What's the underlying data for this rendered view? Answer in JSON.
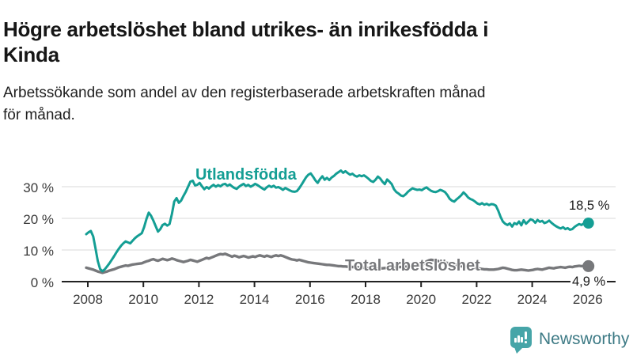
{
  "header": {
    "title": "Högre arbetslöshet bland utrikes- än inrikesfödda i Kinda",
    "title_lines": [
      "Högre arbetslöshet bland utrikes- än inrikesfödda i",
      "Kinda"
    ],
    "subtitle": "Arbetssökande som andel av den registerbaserade arbetskraften månad för månad.",
    "subtitle_lines": [
      "Arbetssökande som andel av den registerbaserade arbetskraften månad",
      "för månad."
    ]
  },
  "footer": {
    "brand": "Newsworthy",
    "brand_icon": "bar-chart-speech-bubble-icon",
    "brand_color": "#46a5a8",
    "brand_text_color": "#3d7a85"
  },
  "chart_data": {
    "type": "line",
    "x_unit": "month",
    "x_start": "2008-01",
    "x_end": "2026-02",
    "xticks": [
      2008,
      2010,
      2012,
      2014,
      2016,
      2018,
      2020,
      2022,
      2024,
      2026
    ],
    "xtick_labels": [
      "2008",
      "2010",
      "2012",
      "2014",
      "2016",
      "2018",
      "2020",
      "2022",
      "2024",
      "2026"
    ],
    "yticks": [
      0,
      10,
      20,
      30
    ],
    "ytick_labels": [
      "0 %",
      "10 %",
      "20 %",
      "30 %"
    ],
    "ylim": [
      0,
      36
    ],
    "grid": "horizontal",
    "legend_position": "inline-labels",
    "series": [
      {
        "name": "Utlandsfödda",
        "color": "#149e94",
        "end_label": "18,5 %",
        "end_value": 18.5,
        "values": [
          15.0,
          15.6,
          16.0,
          14.3,
          10.5,
          6.5,
          4.0,
          3.3,
          3.9,
          4.8,
          5.8,
          6.9,
          8.0,
          9.2,
          10.3,
          11.3,
          12.1,
          12.7,
          12.4,
          12.1,
          12.9,
          13.7,
          14.3,
          14.8,
          15.3,
          17.2,
          19.8,
          21.8,
          20.8,
          19.3,
          17.5,
          15.8,
          16.6,
          17.9,
          18.3,
          17.7,
          18.2,
          21.3,
          25.3,
          26.4,
          24.9,
          25.6,
          27.1,
          28.4,
          30.0,
          31.6,
          31.9,
          30.4,
          30.6,
          31.2,
          30.1,
          29.2,
          29.9,
          29.4,
          30.1,
          30.6,
          30.0,
          30.5,
          30.1,
          30.7,
          30.9,
          30.3,
          30.7,
          30.1,
          29.6,
          29.3,
          30.0,
          30.5,
          30.9,
          30.2,
          30.6,
          30.0,
          30.4,
          30.9,
          30.5,
          30.0,
          29.5,
          29.1,
          29.8,
          30.3,
          29.9,
          30.3,
          29.7,
          29.9,
          29.5,
          29.0,
          29.6,
          29.2,
          28.8,
          28.5,
          28.4,
          28.6,
          29.5,
          30.6,
          31.8,
          33.0,
          33.8,
          34.2,
          33.2,
          32.0,
          31.2,
          32.4,
          33.3,
          32.2,
          32.8,
          32.1,
          32.9,
          33.4,
          34.1,
          34.6,
          35.1,
          34.4,
          34.9,
          34.3,
          33.8,
          34.1,
          33.5,
          33.2,
          33.6,
          33.3,
          33.6,
          33.1,
          32.5,
          31.8,
          31.5,
          32.2,
          33.2,
          32.6,
          31.6,
          30.8,
          32.3,
          31.6,
          30.8,
          29.2,
          28.3,
          27.8,
          27.2,
          27.0,
          27.6,
          28.4,
          29.0,
          29.5,
          29.2,
          29.0,
          29.1,
          28.9,
          29.4,
          29.8,
          29.2,
          28.7,
          28.4,
          28.3,
          28.6,
          29.0,
          28.7,
          28.3,
          27.4,
          26.2,
          25.6,
          25.3,
          26.0,
          26.6,
          27.3,
          28.2,
          27.5,
          26.6,
          26.1,
          25.8,
          25.3,
          24.7,
          24.4,
          24.8,
          24.3,
          24.6,
          24.2,
          24.5,
          24.4,
          24.0,
          22.4,
          20.5,
          19.0,
          18.3,
          17.9,
          18.4,
          17.4,
          18.5,
          18.1,
          19.0,
          17.8,
          19.4,
          18.3,
          19.0,
          19.7,
          19.4,
          18.6,
          19.5,
          18.9,
          19.2,
          18.5,
          18.8,
          19.3,
          18.6,
          18.0,
          17.5,
          17.1,
          16.8,
          17.2,
          16.6,
          16.9,
          16.4,
          16.6,
          17.3,
          17.8,
          18.2,
          17.9,
          18.4,
          18.2,
          18.5
        ]
      },
      {
        "name": "Total arbetslöshet",
        "color": "#77787b",
        "end_label": "4,9 %",
        "end_value": 4.9,
        "values": [
          4.4,
          4.2,
          4.0,
          3.8,
          3.5,
          3.2,
          3.0,
          2.8,
          3.0,
          3.2,
          3.5,
          3.7,
          3.9,
          4.2,
          4.5,
          4.7,
          4.9,
          5.1,
          5.0,
          5.2,
          5.4,
          5.5,
          5.6,
          5.7,
          5.8,
          6.1,
          6.4,
          6.6,
          6.9,
          7.1,
          6.8,
          6.6,
          6.9,
          7.2,
          7.0,
          6.8,
          7.0,
          7.3,
          7.1,
          6.8,
          6.6,
          6.4,
          6.2,
          6.4,
          6.6,
          6.9,
          6.7,
          6.5,
          6.3,
          6.6,
          6.9,
          7.2,
          7.5,
          7.3,
          7.6,
          7.9,
          8.2,
          8.5,
          8.7,
          8.6,
          8.8,
          8.5,
          8.2,
          7.9,
          8.2,
          8.0,
          7.7,
          7.9,
          8.1,
          7.9,
          7.6,
          7.8,
          8.0,
          7.8,
          8.1,
          8.3,
          8.1,
          7.9,
          8.2,
          8.0,
          7.8,
          8.1,
          8.3,
          8.1,
          8.3,
          8.1,
          7.8,
          7.5,
          7.2,
          7.0,
          6.9,
          6.7,
          6.9,
          6.7,
          6.5,
          6.3,
          6.1,
          6.0,
          5.9,
          5.8,
          5.7,
          5.6,
          5.5,
          5.4,
          5.3,
          5.3,
          5.2,
          5.1,
          5.0,
          4.9,
          4.9,
          4.8,
          4.8,
          4.7,
          4.7,
          4.6,
          4.6,
          4.5,
          4.5,
          4.4,
          4.4,
          4.3,
          4.3,
          4.2,
          4.2,
          4.1,
          4.1,
          4.2,
          4.2,
          4.3,
          4.3,
          4.4,
          4.4,
          4.5,
          4.5,
          4.6,
          4.6,
          4.7,
          4.7,
          4.8,
          4.8,
          4.9,
          4.9,
          5.0,
          5.1,
          5.2,
          5.8,
          6.4,
          6.7,
          6.9,
          6.8,
          6.7,
          6.5,
          6.3,
          6.1,
          6.0,
          5.9,
          5.8,
          5.6,
          5.4,
          5.2,
          5.0,
          4.9,
          4.8,
          4.7,
          4.6,
          4.5,
          4.4,
          4.3,
          4.2,
          4.1,
          4.0,
          3.9,
          3.9,
          3.8,
          3.8,
          3.8,
          3.9,
          4.0,
          4.2,
          4.4,
          4.3,
          4.1,
          3.9,
          3.7,
          3.6,
          3.6,
          3.7,
          3.8,
          3.7,
          3.6,
          3.5,
          3.6,
          3.7,
          3.9,
          4.0,
          3.9,
          3.8,
          4.0,
          4.2,
          4.4,
          4.3,
          4.2,
          4.4,
          4.5,
          4.6,
          4.5,
          4.4,
          4.6,
          4.7,
          4.6,
          4.8,
          4.9,
          5.0,
          4.9,
          5.0,
          4.9,
          4.9
        ]
      }
    ],
    "axis_color": "#222222",
    "gridline_color": "#d8d8d8",
    "tick_label_color": "#3a3a3a"
  }
}
